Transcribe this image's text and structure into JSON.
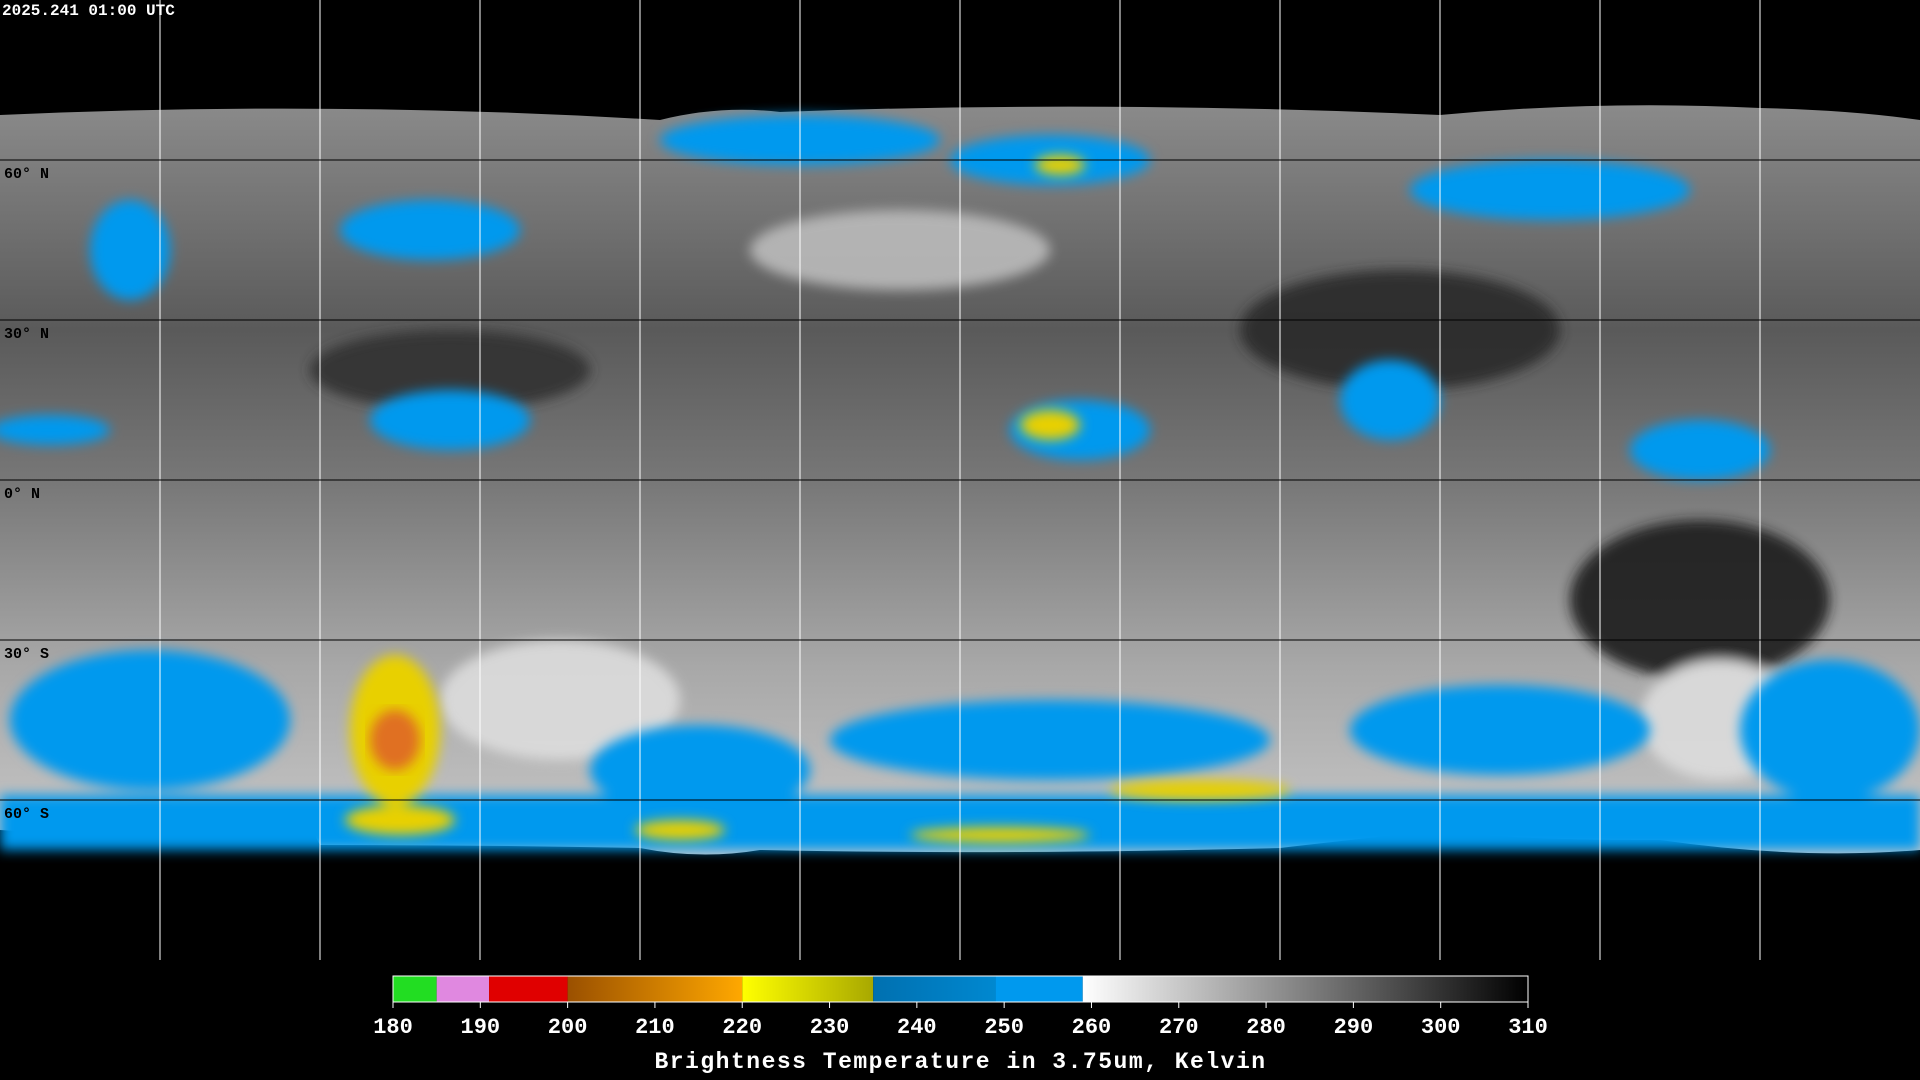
{
  "timestamp": "2025.241 01:00 UTC",
  "latitudes": [
    {
      "value": 60,
      "label": "60° N"
    },
    {
      "value": 30,
      "label": "30° N"
    },
    {
      "value": 0,
      "label": "0° N"
    },
    {
      "value": -30,
      "label": "30° S"
    },
    {
      "value": -60,
      "label": "60° S"
    }
  ],
  "colorbar": {
    "title": "Brightness Temperature in 3.75um, Kelvin",
    "lim": [
      180,
      310
    ],
    "ticks": [
      180,
      190,
      200,
      210,
      220,
      230,
      240,
      250,
      260,
      270,
      280,
      290,
      300,
      310
    ],
    "segments": [
      {
        "from": 180,
        "to": 185,
        "colors": [
          "#22dd22",
          "#22dd22"
        ]
      },
      {
        "from": 185,
        "to": 191,
        "colors": [
          "#e088e0",
          "#e088e0"
        ]
      },
      {
        "from": 191,
        "to": 200,
        "colors": [
          "#e00000",
          "#e00000"
        ]
      },
      {
        "from": 200,
        "to": 220,
        "colors": [
          "#9a5000",
          "#ffa800"
        ]
      },
      {
        "from": 220,
        "to": 235,
        "colors": [
          "#ffff00",
          "#a8a800"
        ]
      },
      {
        "from": 235,
        "to": 249,
        "colors": [
          "#0070b0",
          "#0088d0"
        ]
      },
      {
        "from": 249,
        "to": 259,
        "colors": [
          "#0099ee",
          "#0099ee"
        ]
      },
      {
        "from": 259,
        "to": 310,
        "colors": [
          "#ffffff",
          "#000000"
        ]
      }
    ]
  }
}
